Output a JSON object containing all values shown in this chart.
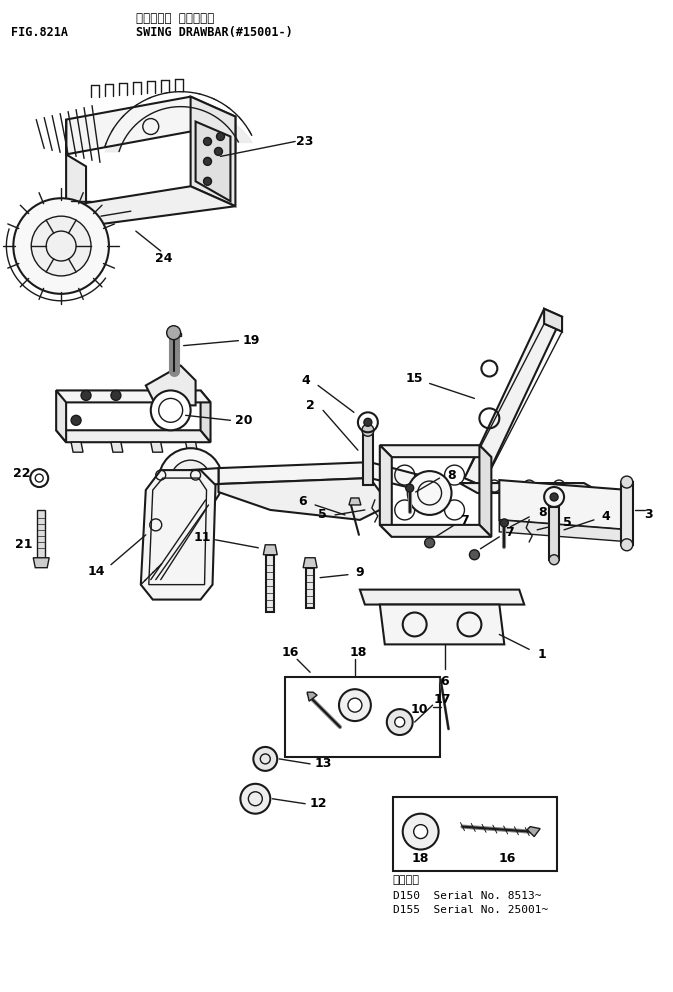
{
  "fig_label": "FIG.821A",
  "title_japanese": "スイング・ ドローバー",
  "title_english": "SWING DRAWBAR(#15001-)",
  "bg_color": "#ffffff",
  "line_color": "#1a1a1a",
  "text_color": "#000000",
  "fig_width": 6.73,
  "fig_height": 9.92,
  "dpi": 100,
  "serial_note_japanese": "適用番号",
  "serial_d150": "D150  Serial No. 8513~",
  "serial_d155": "D155  Serial No. 25001~"
}
